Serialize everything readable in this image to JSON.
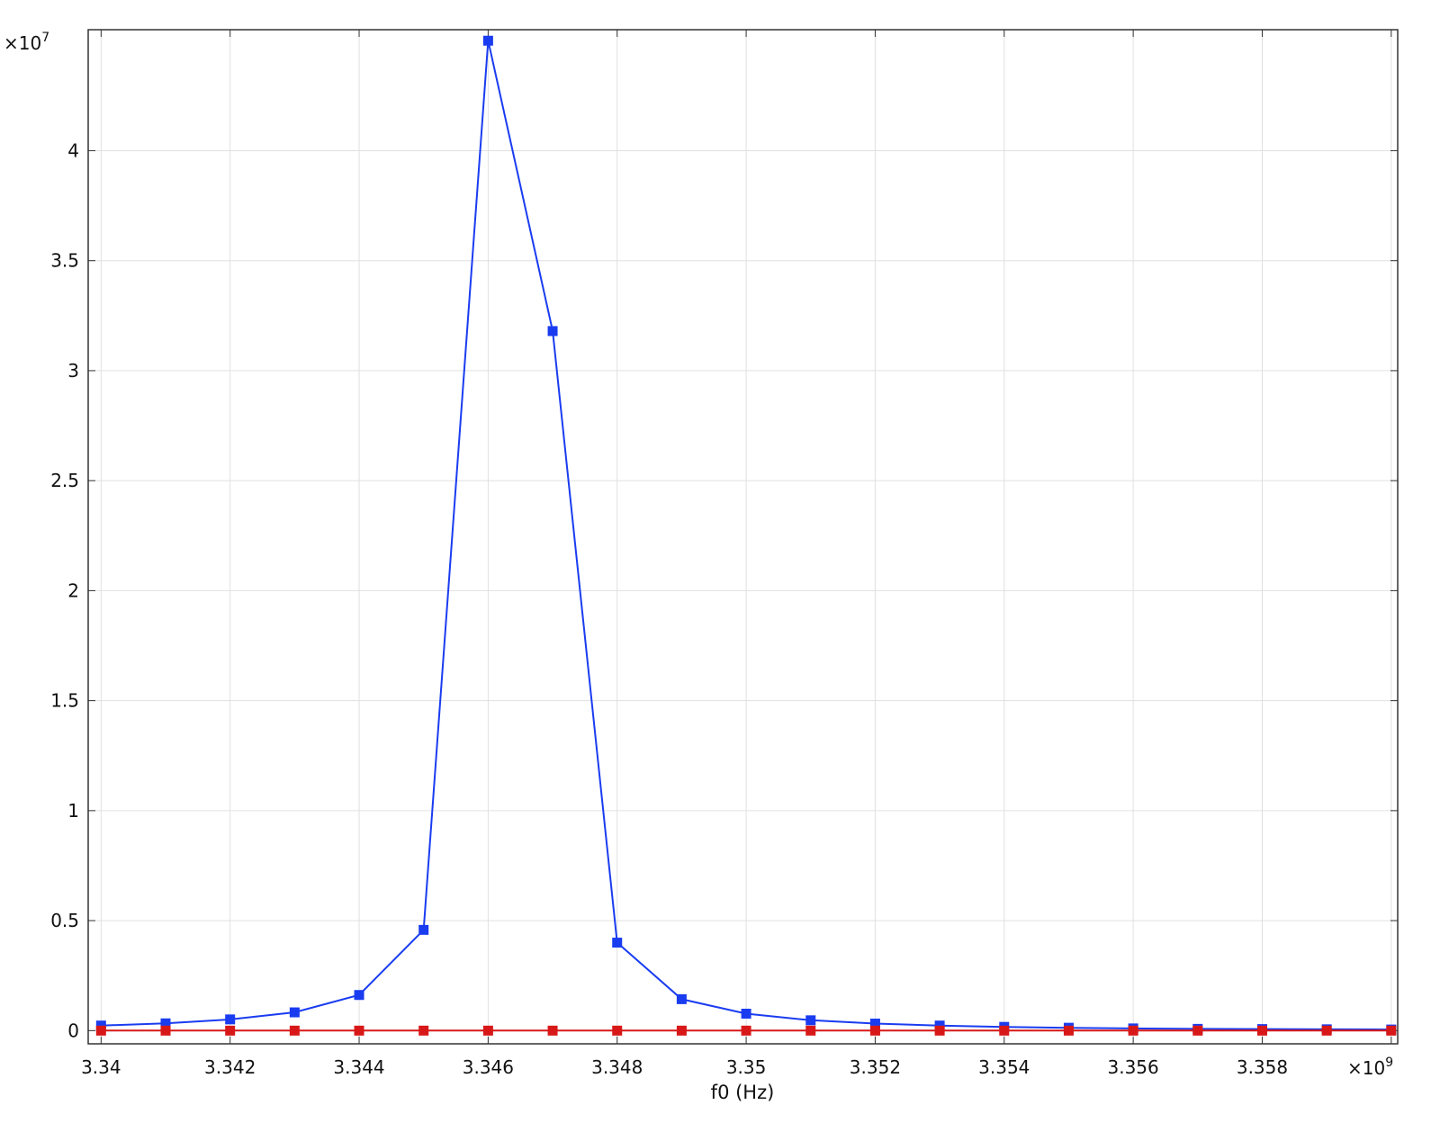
{
  "chart_data": {
    "type": "line",
    "title": "",
    "xlabel": "f0 (Hz)",
    "ylabel": "",
    "x_multiplier_base": "×10",
    "x_multiplier_exp": "9",
    "y_multiplier_base": "×10",
    "y_multiplier_exp": "7",
    "xlim": [
      3.3398,
      3.3601
    ],
    "ylim": [
      -0.06,
      4.55
    ],
    "x_ticks": [
      3.34,
      3.342,
      3.344,
      3.346,
      3.348,
      3.35,
      3.352,
      3.354,
      3.356,
      3.358
    ],
    "x_tick_labels": [
      "3.34",
      "3.342",
      "3.344",
      "3.346",
      "3.348",
      "3.35",
      "3.352",
      "3.354",
      "3.356",
      "3.358"
    ],
    "y_ticks": [
      0,
      0.5,
      1,
      1.5,
      2,
      2.5,
      3,
      3.5,
      4
    ],
    "y_tick_labels": [
      "0",
      "0.5",
      "1",
      "1.5",
      "2",
      "2.5",
      "3",
      "3.5",
      "4"
    ],
    "grid": true,
    "x": [
      3.34,
      3.341,
      3.342,
      3.343,
      3.344,
      3.345,
      3.346,
      3.347,
      3.348,
      3.349,
      3.35,
      3.351,
      3.352,
      3.353,
      3.354,
      3.355,
      3.356,
      3.357,
      3.358,
      3.359,
      3.36
    ],
    "series": [
      {
        "color": "#1a3cf0",
        "marker": "square",
        "values": [
          0.023,
          0.033,
          0.051,
          0.083,
          0.162,
          0.458,
          4.5,
          3.18,
          0.4,
          0.143,
          0.077,
          0.047,
          0.032,
          0.023,
          0.017,
          0.013,
          0.01,
          0.008,
          0.007,
          0.006,
          0.005
        ]
      },
      {
        "color": "#d81818",
        "marker": "square",
        "values": [
          0,
          0,
          0,
          0,
          0,
          0,
          0,
          0,
          0,
          0,
          0,
          0,
          0,
          0,
          0,
          0,
          0,
          0,
          0,
          0,
          0
        ]
      }
    ]
  }
}
